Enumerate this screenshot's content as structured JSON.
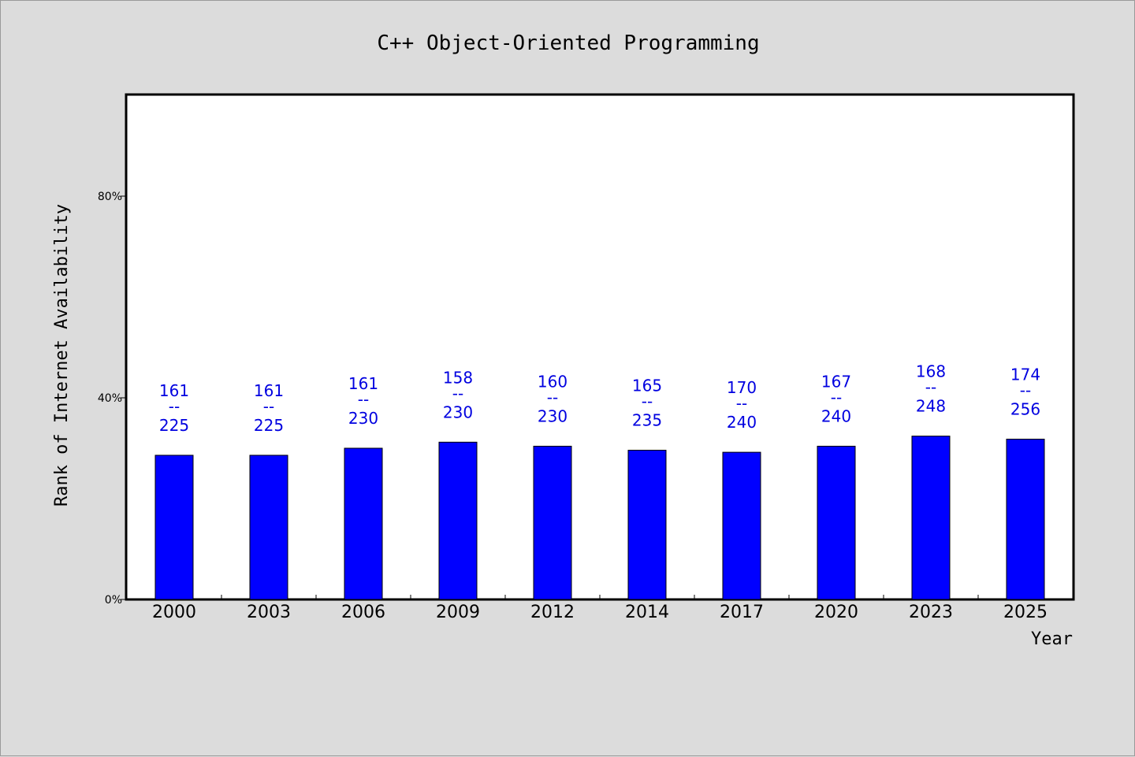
{
  "chart_data": {
    "type": "bar",
    "title": "C++ Object-Oriented Programming",
    "xlabel": "Year",
    "ylabel": "Rank of Internet Availability",
    "categories": [
      "2000",
      "2003",
      "2006",
      "2009",
      "2012",
      "2014",
      "2017",
      "2020",
      "2023",
      "2025"
    ],
    "values": [
      0.286,
      0.286,
      0.3,
      0.312,
      0.304,
      0.296,
      0.292,
      0.304,
      0.324,
      0.318
    ],
    "low_labels": [
      "161",
      "161",
      "161",
      "158",
      "160",
      "165",
      "170",
      "167",
      "168",
      "174"
    ],
    "high_labels": [
      "225",
      "225",
      "230",
      "230",
      "230",
      "235",
      "240",
      "240",
      "248",
      "256"
    ],
    "label_separator": "--",
    "ylim": [
      0,
      1.0
    ],
    "yticks": [
      0,
      0.4,
      0.8
    ],
    "ytick_labels": [
      "0%",
      "40%",
      "80%"
    ],
    "grid": false,
    "colors": {
      "bar": "#0000ff",
      "label": "#0000e0",
      "background": "#dcdcdc",
      "plot_area": "#ffffff"
    }
  }
}
